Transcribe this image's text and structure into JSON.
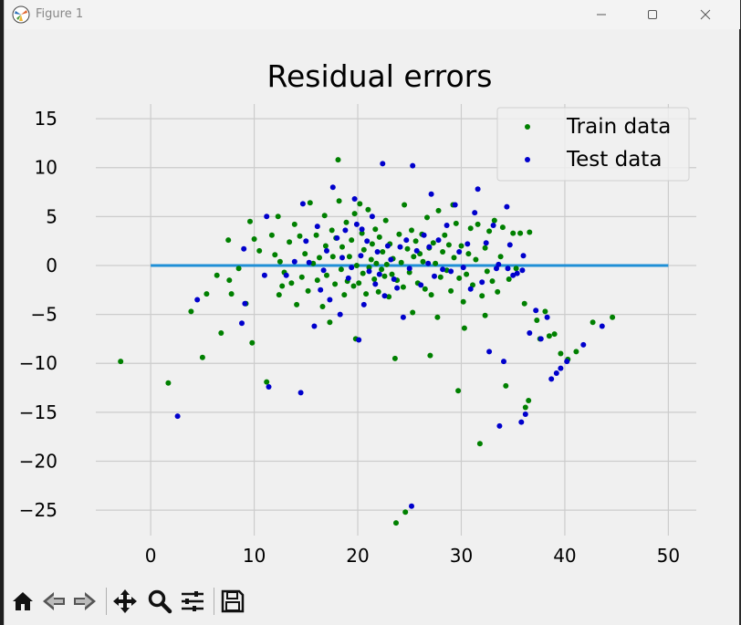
{
  "window": {
    "title": "Figure 1"
  },
  "toolbar": {
    "buttons": [
      "home-icon",
      "back-icon",
      "forward-icon",
      "pan-icon",
      "zoom-icon",
      "configure-subplots-icon",
      "save-icon"
    ]
  },
  "colors": {
    "train": "#008000",
    "test": "#0000cc",
    "zero_line": "#1f8fd6",
    "grid": "#cccccc"
  },
  "chart_data": {
    "type": "scatter",
    "title": "Residual errors",
    "xlabel": "",
    "ylabel": "",
    "xlim": [
      -5.3,
      52.7
    ],
    "ylim": [
      -27.6,
      16.5
    ],
    "xticks": [
      0,
      10,
      20,
      30,
      40,
      50
    ],
    "yticks": [
      15,
      10,
      5,
      0,
      -5,
      -10,
      -15,
      -20,
      -25
    ],
    "grid": true,
    "legend": "top-right",
    "hline": {
      "y": 0,
      "xmin": 0,
      "xmax": 50
    },
    "series": [
      {
        "name": "Train data",
        "points": [
          [
            -2.9,
            -9.8
          ],
          [
            1.7,
            -12.0
          ],
          [
            3.9,
            -4.7
          ],
          [
            5.0,
            -9.4
          ],
          [
            5.4,
            -2.9
          ],
          [
            6.4,
            -1.0
          ],
          [
            6.8,
            -6.9
          ],
          [
            7.5,
            2.6
          ],
          [
            7.6,
            -1.5
          ],
          [
            7.8,
            -2.9
          ],
          [
            8.5,
            -0.3
          ],
          [
            9.2,
            -3.9
          ],
          [
            9.6,
            4.5
          ],
          [
            9.8,
            -7.9
          ],
          [
            10.0,
            2.7
          ],
          [
            10.5,
            1.5
          ],
          [
            11.2,
            -11.9
          ],
          [
            11.7,
            3.1
          ],
          [
            12.0,
            1.1
          ],
          [
            12.3,
            5.0
          ],
          [
            12.4,
            -3.0
          ],
          [
            12.7,
            -2.1
          ],
          [
            12.9,
            -0.7
          ],
          [
            12.5,
            0.4
          ],
          [
            13.4,
            2.4
          ],
          [
            13.6,
            -1.8
          ],
          [
            13.9,
            4.2
          ],
          [
            14.1,
            -4.0
          ],
          [
            14.4,
            3.0
          ],
          [
            14.6,
            -1.2
          ],
          [
            14.9,
            1.2
          ],
          [
            15.2,
            -2.6
          ],
          [
            15.4,
            6.4
          ],
          [
            15.7,
            0.2
          ],
          [
            16.0,
            3.1
          ],
          [
            16.1,
            -1.5
          ],
          [
            16.3,
            0.8
          ],
          [
            16.6,
            -4.2
          ],
          [
            16.8,
            5.1
          ],
          [
            16.9,
            2.0
          ],
          [
            17.0,
            -1.0
          ],
          [
            17.3,
            -5.8
          ],
          [
            17.5,
            3.6
          ],
          [
            17.6,
            0.9
          ],
          [
            17.8,
            -1.9
          ],
          [
            17.9,
            2.8
          ],
          [
            18.1,
            10.8
          ],
          [
            18.2,
            6.6
          ],
          [
            18.4,
            -0.4
          ],
          [
            18.5,
            1.9
          ],
          [
            18.7,
            -3.0
          ],
          [
            18.9,
            4.4
          ],
          [
            19.0,
            -1.6
          ],
          [
            19.2,
            0.9
          ],
          [
            19.4,
            2.6
          ],
          [
            19.6,
            -2.1
          ],
          [
            19.7,
            5.3
          ],
          [
            19.8,
            -7.5
          ],
          [
            19.9,
            0.0
          ],
          [
            20.1,
            -1.8
          ],
          [
            20.2,
            6.3
          ],
          [
            20.4,
            3.3
          ],
          [
            20.5,
            -0.8
          ],
          [
            20.6,
            1.6
          ],
          [
            20.8,
            -2.9
          ],
          [
            21.0,
            5.7
          ],
          [
            21.1,
            -0.2
          ],
          [
            21.3,
            0.6
          ],
          [
            21.4,
            2.2
          ],
          [
            21.6,
            -1.4
          ],
          [
            21.7,
            3.7
          ],
          [
            21.8,
            0.2
          ],
          [
            22.0,
            -2.7
          ],
          [
            22.1,
            2.9
          ],
          [
            22.3,
            -0.4
          ],
          [
            22.4,
            1.4
          ],
          [
            22.6,
            -1.1
          ],
          [
            22.7,
            4.6
          ],
          [
            22.8,
            0.1
          ],
          [
            23.0,
            -3.2
          ],
          [
            23.1,
            2.2
          ],
          [
            23.3,
            -0.9
          ],
          [
            23.4,
            0.7
          ],
          [
            23.6,
            -9.5
          ],
          [
            23.7,
            -26.3
          ],
          [
            23.8,
            -1.5
          ],
          [
            24.0,
            3.2
          ],
          [
            24.2,
            0.3
          ],
          [
            24.4,
            -2.2
          ],
          [
            24.5,
            6.2
          ],
          [
            24.6,
            -25.2
          ],
          [
            24.8,
            1.7
          ],
          [
            25.0,
            -0.7
          ],
          [
            25.2,
            3.6
          ],
          [
            25.3,
            -4.8
          ],
          [
            25.4,
            0.9
          ],
          [
            25.6,
            2.5
          ],
          [
            25.8,
            -1.8
          ],
          [
            26.0,
            1.2
          ],
          [
            26.2,
            3.2
          ],
          [
            26.3,
            0.4
          ],
          [
            26.5,
            -2.4
          ],
          [
            26.7,
            4.9
          ],
          [
            26.9,
            1.8
          ],
          [
            27.0,
            -9.2
          ],
          [
            27.1,
            -3.0
          ],
          [
            27.3,
            2.3
          ],
          [
            27.5,
            0.2
          ],
          [
            27.7,
            -5.3
          ],
          [
            27.8,
            5.6
          ],
          [
            28.0,
            -1.2
          ],
          [
            28.2,
            1.4
          ],
          [
            28.4,
            3.1
          ],
          [
            28.6,
            -0.5
          ],
          [
            28.8,
            2.1
          ],
          [
            29.0,
            -2.6
          ],
          [
            29.2,
            6.2
          ],
          [
            29.3,
            0.8
          ],
          [
            29.5,
            4.3
          ],
          [
            29.7,
            -12.8
          ],
          [
            29.8,
            -1.3
          ],
          [
            30.0,
            2.0
          ],
          [
            30.2,
            -3.7
          ],
          [
            30.3,
            -6.4
          ],
          [
            30.5,
            -0.9
          ],
          [
            30.7,
            1.2
          ],
          [
            30.9,
            3.8
          ],
          [
            31.1,
            -2.0
          ],
          [
            31.4,
            0.6
          ],
          [
            31.6,
            4.2
          ],
          [
            31.8,
            -18.2
          ],
          [
            32.0,
            -3.1
          ],
          [
            32.3,
            1.8
          ],
          [
            32.5,
            -0.6
          ],
          [
            32.7,
            3.5
          ],
          [
            33.0,
            -1.6
          ],
          [
            33.2,
            4.6
          ],
          [
            33.5,
            -2.7
          ],
          [
            33.8,
            0.9
          ],
          [
            34.0,
            3.9
          ],
          [
            34.3,
            -12.3
          ],
          [
            34.6,
            -1.4
          ],
          [
            35.0,
            3.3
          ],
          [
            35.3,
            -0.3
          ],
          [
            35.7,
            3.3
          ],
          [
            36.1,
            -3.9
          ],
          [
            36.5,
            -13.8
          ],
          [
            36.2,
            -14.5
          ],
          [
            37.3,
            -5.6
          ],
          [
            37.6,
            -7.5
          ],
          [
            38.1,
            -4.7
          ],
          [
            38.5,
            -7.2
          ],
          [
            39.0,
            -7.0
          ],
          [
            39.6,
            -9.0
          ],
          [
            40.3,
            -9.6
          ],
          [
            41.1,
            -8.8
          ],
          [
            42.7,
            -5.8
          ],
          [
            44.6,
            -5.3
          ],
          [
            32.3,
            -5.1
          ],
          [
            36.6,
            3.4
          ]
        ]
      },
      {
        "name": "Test data",
        "points": [
          [
            2.6,
            -15.4
          ],
          [
            4.5,
            -3.5
          ],
          [
            8.8,
            -5.9
          ],
          [
            9.1,
            -3.9
          ],
          [
            9.0,
            1.7
          ],
          [
            11.2,
            5.0
          ],
          [
            11.4,
            -12.4
          ],
          [
            11.0,
            -1.0
          ],
          [
            13.1,
            -1.0
          ],
          [
            13.9,
            0.4
          ],
          [
            14.5,
            -13.0
          ],
          [
            14.7,
            6.3
          ],
          [
            15.0,
            2.5
          ],
          [
            15.3,
            0.3
          ],
          [
            15.8,
            -6.2
          ],
          [
            16.1,
            4.0
          ],
          [
            16.4,
            -2.5
          ],
          [
            16.7,
            -0.5
          ],
          [
            17.0,
            1.5
          ],
          [
            17.3,
            -3.5
          ],
          [
            17.6,
            8.0
          ],
          [
            18.0,
            2.8
          ],
          [
            18.3,
            -5.0
          ],
          [
            18.5,
            0.8
          ],
          [
            18.8,
            3.6
          ],
          [
            19.1,
            -1.3
          ],
          [
            19.4,
            -0.2
          ],
          [
            19.7,
            6.8
          ],
          [
            19.9,
            4.2
          ],
          [
            20.1,
            -7.6
          ],
          [
            20.3,
            1.0
          ],
          [
            20.6,
            -4.0
          ],
          [
            20.9,
            2.5
          ],
          [
            21.1,
            -0.6
          ],
          [
            21.4,
            5.0
          ],
          [
            21.7,
            -1.9
          ],
          [
            21.9,
            1.4
          ],
          [
            22.1,
            -0.9
          ],
          [
            22.4,
            10.4
          ],
          [
            22.6,
            -3.1
          ],
          [
            22.9,
            2.0
          ],
          [
            23.2,
            0.6
          ],
          [
            23.5,
            -1.4
          ],
          [
            23.8,
            -2.3
          ],
          [
            24.1,
            1.9
          ],
          [
            24.4,
            -5.3
          ],
          [
            24.7,
            2.6
          ],
          [
            25.0,
            -0.3
          ],
          [
            25.3,
            10.2
          ],
          [
            25.2,
            -24.6
          ],
          [
            25.7,
            1.5
          ],
          [
            26.1,
            -2.0
          ],
          [
            26.4,
            3.1
          ],
          [
            26.8,
            0.2
          ],
          [
            27.1,
            7.3
          ],
          [
            27.4,
            -1.1
          ],
          [
            27.8,
            2.6
          ],
          [
            28.2,
            -0.4
          ],
          [
            28.6,
            4.1
          ],
          [
            29.0,
            -0.6
          ],
          [
            29.4,
            6.2
          ],
          [
            29.8,
            1.4
          ],
          [
            30.2,
            -0.2
          ],
          [
            30.6,
            2.2
          ],
          [
            30.9,
            -2.4
          ],
          [
            31.3,
            5.4
          ],
          [
            31.6,
            7.8
          ],
          [
            32.0,
            -1.7
          ],
          [
            32.4,
            2.3
          ],
          [
            32.7,
            -8.8
          ],
          [
            33.1,
            4.1
          ],
          [
            33.4,
            -0.3
          ],
          [
            33.7,
            -16.4
          ],
          [
            34.1,
            -9.8
          ],
          [
            34.4,
            6.0
          ],
          [
            34.7,
            2.1
          ],
          [
            35.0,
            -1.0
          ],
          [
            35.4,
            -0.8
          ],
          [
            35.8,
            -16.0
          ],
          [
            36.2,
            -15.2
          ],
          [
            36.6,
            -6.9
          ],
          [
            37.2,
            -4.6
          ],
          [
            37.7,
            -7.5
          ],
          [
            38.3,
            -5.3
          ],
          [
            38.7,
            -11.6
          ],
          [
            39.2,
            -11.0
          ],
          [
            39.6,
            -10.5
          ],
          [
            40.2,
            -9.8
          ],
          [
            41.8,
            -8.1
          ],
          [
            43.6,
            -6.2
          ],
          [
            35.9,
            -0.5
          ],
          [
            34.5,
            -0.3
          ],
          [
            36.0,
            1.0
          ],
          [
            33.6,
            0.1
          ],
          [
            26.9,
            1.9
          ],
          [
            20.4,
            3.7
          ]
        ]
      }
    ]
  }
}
